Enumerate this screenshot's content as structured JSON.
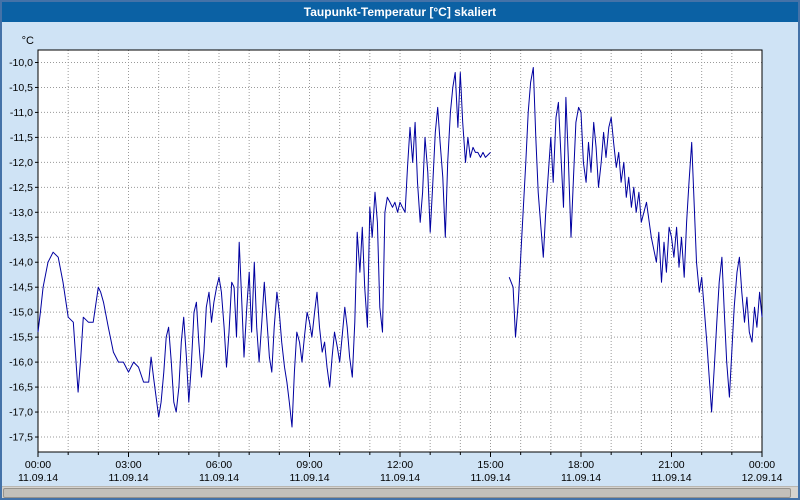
{
  "window": {
    "title": "Taupunkt-Temperatur [°C] skaliert"
  },
  "chart_data": {
    "type": "line",
    "title": "Taupunkt-Temperatur [°C] skaliert",
    "ylabel": "°C",
    "xlabel": "",
    "grid": "dotted",
    "legend_position": "none",
    "line_color": "#0000a0",
    "grid_color": "#9a9a9a",
    "plot_bg": "#ffffff",
    "xlim": [
      0,
      24
    ],
    "ylim": [
      -17.8,
      -9.75
    ],
    "y_ticks": [
      {
        "value": -10.0,
        "label": "-10,0"
      },
      {
        "value": -10.5,
        "label": "-10,5"
      },
      {
        "value": -11.0,
        "label": "-11,0"
      },
      {
        "value": -11.5,
        "label": "-11,5"
      },
      {
        "value": -12.0,
        "label": "-12,0"
      },
      {
        "value": -12.5,
        "label": "-12,5"
      },
      {
        "value": -13.0,
        "label": "-13,0"
      },
      {
        "value": -13.5,
        "label": "-13,5"
      },
      {
        "value": -14.0,
        "label": "-14,0"
      },
      {
        "value": -14.5,
        "label": "-14,5"
      },
      {
        "value": -15.0,
        "label": "-15,0"
      },
      {
        "value": -15.5,
        "label": "-15,5"
      },
      {
        "value": -16.0,
        "label": "-16,0"
      },
      {
        "value": -16.5,
        "label": "-16,5"
      },
      {
        "value": -17.0,
        "label": "-17,0"
      },
      {
        "value": -17.5,
        "label": "-17,5"
      }
    ],
    "x_ticks": [
      {
        "hour": 0,
        "label": "00:00",
        "date": "11.09.14"
      },
      {
        "hour": 3,
        "label": "03:00",
        "date": "11.09.14"
      },
      {
        "hour": 6,
        "label": "06:00",
        "date": "11.09.14"
      },
      {
        "hour": 9,
        "label": "09:00",
        "date": "11.09.14"
      },
      {
        "hour": 12,
        "label": "12:00",
        "date": "11.09.14"
      },
      {
        "hour": 15,
        "label": "15:00",
        "date": "11.09.14"
      },
      {
        "hour": 18,
        "label": "18:00",
        "date": "11.09.14"
      },
      {
        "hour": 21,
        "label": "21:00",
        "date": "11.09.14"
      },
      {
        "hour": 24,
        "label": "00:00",
        "date": "12.09.14"
      }
    ],
    "series": [
      {
        "name": "Taupunkt-Temperatur",
        "points": [
          [
            0.0,
            -15.4
          ],
          [
            0.08,
            -15.0
          ],
          [
            0.17,
            -14.5
          ],
          [
            0.33,
            -14.0
          ],
          [
            0.5,
            -13.8
          ],
          [
            0.67,
            -13.9
          ],
          [
            0.83,
            -14.4
          ],
          [
            1.0,
            -15.1
          ],
          [
            1.17,
            -15.2
          ],
          [
            1.33,
            -16.6
          ],
          [
            1.42,
            -15.9
          ],
          [
            1.5,
            -15.1
          ],
          [
            1.67,
            -15.2
          ],
          [
            1.83,
            -15.2
          ],
          [
            2.0,
            -14.5
          ],
          [
            2.08,
            -14.6
          ],
          [
            2.17,
            -14.8
          ],
          [
            2.33,
            -15.3
          ],
          [
            2.5,
            -15.8
          ],
          [
            2.67,
            -16.0
          ],
          [
            2.83,
            -16.0
          ],
          [
            3.0,
            -16.2
          ],
          [
            3.17,
            -16.0
          ],
          [
            3.33,
            -16.1
          ],
          [
            3.5,
            -16.4
          ],
          [
            3.67,
            -16.4
          ],
          [
            3.75,
            -15.9
          ],
          [
            3.83,
            -16.3
          ],
          [
            4.0,
            -17.1
          ],
          [
            4.08,
            -16.8
          ],
          [
            4.17,
            -16.2
          ],
          [
            4.25,
            -15.5
          ],
          [
            4.33,
            -15.3
          ],
          [
            4.42,
            -16.0
          ],
          [
            4.5,
            -16.8
          ],
          [
            4.58,
            -17.0
          ],
          [
            4.67,
            -16.5
          ],
          [
            4.75,
            -15.6
          ],
          [
            4.83,
            -15.1
          ],
          [
            4.92,
            -15.9
          ],
          [
            5.0,
            -16.8
          ],
          [
            5.08,
            -16.1
          ],
          [
            5.17,
            -15.0
          ],
          [
            5.25,
            -14.8
          ],
          [
            5.33,
            -15.6
          ],
          [
            5.42,
            -16.3
          ],
          [
            5.5,
            -15.8
          ],
          [
            5.58,
            -14.9
          ],
          [
            5.67,
            -14.6
          ],
          [
            5.75,
            -15.2
          ],
          [
            5.83,
            -14.8
          ],
          [
            5.92,
            -14.5
          ],
          [
            6.0,
            -14.3
          ],
          [
            6.08,
            -14.6
          ],
          [
            6.17,
            -15.3
          ],
          [
            6.25,
            -16.1
          ],
          [
            6.33,
            -15.4
          ],
          [
            6.42,
            -14.4
          ],
          [
            6.5,
            -14.5
          ],
          [
            6.58,
            -15.5
          ],
          [
            6.67,
            -13.6
          ],
          [
            6.75,
            -14.7
          ],
          [
            6.83,
            -15.9
          ],
          [
            6.92,
            -14.9
          ],
          [
            7.0,
            -14.2
          ],
          [
            7.08,
            -15.4
          ],
          [
            7.17,
            -14.0
          ],
          [
            7.25,
            -15.3
          ],
          [
            7.33,
            -16.0
          ],
          [
            7.42,
            -15.2
          ],
          [
            7.5,
            -14.4
          ],
          [
            7.58,
            -15.1
          ],
          [
            7.67,
            -15.9
          ],
          [
            7.75,
            -16.2
          ],
          [
            7.83,
            -15.3
          ],
          [
            7.92,
            -14.6
          ],
          [
            8.0,
            -15.0
          ],
          [
            8.08,
            -15.6
          ],
          [
            8.17,
            -16.1
          ],
          [
            8.25,
            -16.4
          ],
          [
            8.33,
            -16.8
          ],
          [
            8.42,
            -17.3
          ],
          [
            8.5,
            -16.2
          ],
          [
            8.58,
            -15.4
          ],
          [
            8.67,
            -15.6
          ],
          [
            8.75,
            -16.0
          ],
          [
            8.83,
            -15.5
          ],
          [
            8.92,
            -15.0
          ],
          [
            9.0,
            -15.2
          ],
          [
            9.08,
            -15.5
          ],
          [
            9.17,
            -15.0
          ],
          [
            9.25,
            -14.6
          ],
          [
            9.33,
            -15.3
          ],
          [
            9.42,
            -15.8
          ],
          [
            9.5,
            -15.6
          ],
          [
            9.58,
            -16.1
          ],
          [
            9.67,
            -16.5
          ],
          [
            9.75,
            -15.9
          ],
          [
            9.83,
            -15.4
          ],
          [
            9.92,
            -15.7
          ],
          [
            10.0,
            -16.0
          ],
          [
            10.08,
            -15.5
          ],
          [
            10.17,
            -14.9
          ],
          [
            10.25,
            -15.3
          ],
          [
            10.33,
            -15.9
          ],
          [
            10.42,
            -16.3
          ],
          [
            10.5,
            -15.2
          ],
          [
            10.58,
            -13.4
          ],
          [
            10.67,
            -14.2
          ],
          [
            10.75,
            -13.3
          ],
          [
            10.83,
            -14.5
          ],
          [
            10.92,
            -15.3
          ],
          [
            11.0,
            -12.9
          ],
          [
            11.08,
            -13.5
          ],
          [
            11.17,
            -12.6
          ],
          [
            11.25,
            -13.2
          ],
          [
            11.33,
            -14.9
          ],
          [
            11.42,
            -15.4
          ],
          [
            11.5,
            -13.0
          ],
          [
            11.58,
            -12.7
          ],
          [
            11.67,
            -12.8
          ],
          [
            11.75,
            -12.9
          ],
          [
            11.83,
            -12.8
          ],
          [
            11.92,
            -13.0
          ],
          [
            12.0,
            -12.8
          ],
          [
            12.08,
            -12.9
          ],
          [
            12.17,
            -13.0
          ],
          [
            12.25,
            -12.1
          ],
          [
            12.33,
            -11.3
          ],
          [
            12.42,
            -12.0
          ],
          [
            12.5,
            -11.2
          ],
          [
            12.58,
            -12.4
          ],
          [
            12.67,
            -13.2
          ],
          [
            12.75,
            -12.6
          ],
          [
            12.83,
            -11.5
          ],
          [
            12.92,
            -12.2
          ],
          [
            13.0,
            -13.4
          ],
          [
            13.08,
            -12.5
          ],
          [
            13.17,
            -11.4
          ],
          [
            13.25,
            -10.9
          ],
          [
            13.33,
            -11.6
          ],
          [
            13.42,
            -12.3
          ],
          [
            13.5,
            -13.5
          ],
          [
            13.58,
            -12.0
          ],
          [
            13.67,
            -11.0
          ],
          [
            13.75,
            -10.5
          ],
          [
            13.83,
            -10.2
          ],
          [
            13.92,
            -11.3
          ],
          [
            14.0,
            -10.2
          ],
          [
            14.08,
            -11.2
          ],
          [
            14.17,
            -12.0
          ],
          [
            14.25,
            -11.5
          ],
          [
            14.33,
            -11.9
          ],
          [
            14.42,
            -11.7
          ],
          [
            14.5,
            -11.8
          ],
          [
            14.58,
            -11.8
          ],
          [
            14.67,
            -11.9
          ],
          [
            14.75,
            -11.8
          ],
          [
            14.83,
            -11.9
          ],
          [
            15.0,
            -11.8
          ],
          [
            15.08,
            null
          ],
          [
            15.62,
            -14.3
          ],
          [
            15.75,
            -14.5
          ],
          [
            15.83,
            -15.5
          ],
          [
            15.92,
            -14.8
          ],
          [
            16.0,
            -13.9
          ],
          [
            16.08,
            -13.0
          ],
          [
            16.17,
            -12.0
          ],
          [
            16.25,
            -11.0
          ],
          [
            16.33,
            -10.4
          ],
          [
            16.42,
            -10.1
          ],
          [
            16.5,
            -11.5
          ],
          [
            16.58,
            -12.6
          ],
          [
            16.67,
            -13.3
          ],
          [
            16.75,
            -13.9
          ],
          [
            16.83,
            -13.0
          ],
          [
            16.92,
            -12.2
          ],
          [
            17.0,
            -11.5
          ],
          [
            17.08,
            -12.4
          ],
          [
            17.17,
            -11.1
          ],
          [
            17.25,
            -10.8
          ],
          [
            17.33,
            -11.8
          ],
          [
            17.42,
            -12.9
          ],
          [
            17.5,
            -10.7
          ],
          [
            17.58,
            -11.9
          ],
          [
            17.67,
            -13.5
          ],
          [
            17.75,
            -12.3
          ],
          [
            17.83,
            -11.2
          ],
          [
            17.92,
            -10.9
          ],
          [
            18.0,
            -11.0
          ],
          [
            18.08,
            -12.0
          ],
          [
            18.17,
            -12.4
          ],
          [
            18.25,
            -11.6
          ],
          [
            18.33,
            -12.2
          ],
          [
            18.42,
            -11.2
          ],
          [
            18.5,
            -11.7
          ],
          [
            18.58,
            -12.5
          ],
          [
            18.67,
            -12.0
          ],
          [
            18.75,
            -11.4
          ],
          [
            18.83,
            -11.9
          ],
          [
            18.92,
            -11.3
          ],
          [
            19.0,
            -11.1
          ],
          [
            19.08,
            -11.6
          ],
          [
            19.17,
            -12.1
          ],
          [
            19.25,
            -11.8
          ],
          [
            19.33,
            -12.4
          ],
          [
            19.42,
            -12.0
          ],
          [
            19.5,
            -12.7
          ],
          [
            19.58,
            -12.3
          ],
          [
            19.67,
            -12.9
          ],
          [
            19.75,
            -12.5
          ],
          [
            19.83,
            -13.0
          ],
          [
            19.92,
            -12.6
          ],
          [
            20.0,
            -13.2
          ],
          [
            20.17,
            -12.8
          ],
          [
            20.33,
            -13.5
          ],
          [
            20.5,
            -14.0
          ],
          [
            20.58,
            -13.4
          ],
          [
            20.67,
            -14.4
          ],
          [
            20.75,
            -13.6
          ],
          [
            20.83,
            -14.2
          ],
          [
            20.92,
            -13.3
          ],
          [
            21.0,
            -13.5
          ],
          [
            21.08,
            -13.9
          ],
          [
            21.17,
            -13.3
          ],
          [
            21.25,
            -14.1
          ],
          [
            21.33,
            -13.5
          ],
          [
            21.42,
            -14.3
          ],
          [
            21.5,
            -13.2
          ],
          [
            21.58,
            -12.4
          ],
          [
            21.67,
            -11.6
          ],
          [
            21.75,
            -12.8
          ],
          [
            21.83,
            -14.0
          ],
          [
            21.92,
            -14.6
          ],
          [
            22.0,
            -14.3
          ],
          [
            22.08,
            -14.9
          ],
          [
            22.17,
            -15.6
          ],
          [
            22.25,
            -16.3
          ],
          [
            22.33,
            -17.0
          ],
          [
            22.42,
            -16.1
          ],
          [
            22.5,
            -15.2
          ],
          [
            22.58,
            -14.4
          ],
          [
            22.67,
            -13.9
          ],
          [
            22.75,
            -15.0
          ],
          [
            22.83,
            -16.0
          ],
          [
            22.92,
            -16.7
          ],
          [
            23.0,
            -15.8
          ],
          [
            23.08,
            -14.9
          ],
          [
            23.17,
            -14.2
          ],
          [
            23.25,
            -13.9
          ],
          [
            23.33,
            -14.6
          ],
          [
            23.42,
            -15.2
          ],
          [
            23.5,
            -14.7
          ],
          [
            23.58,
            -15.4
          ],
          [
            23.67,
            -15.6
          ],
          [
            23.75,
            -14.9
          ],
          [
            23.83,
            -15.3
          ],
          [
            23.92,
            -14.6
          ],
          [
            24.0,
            -15.1
          ]
        ]
      }
    ]
  }
}
